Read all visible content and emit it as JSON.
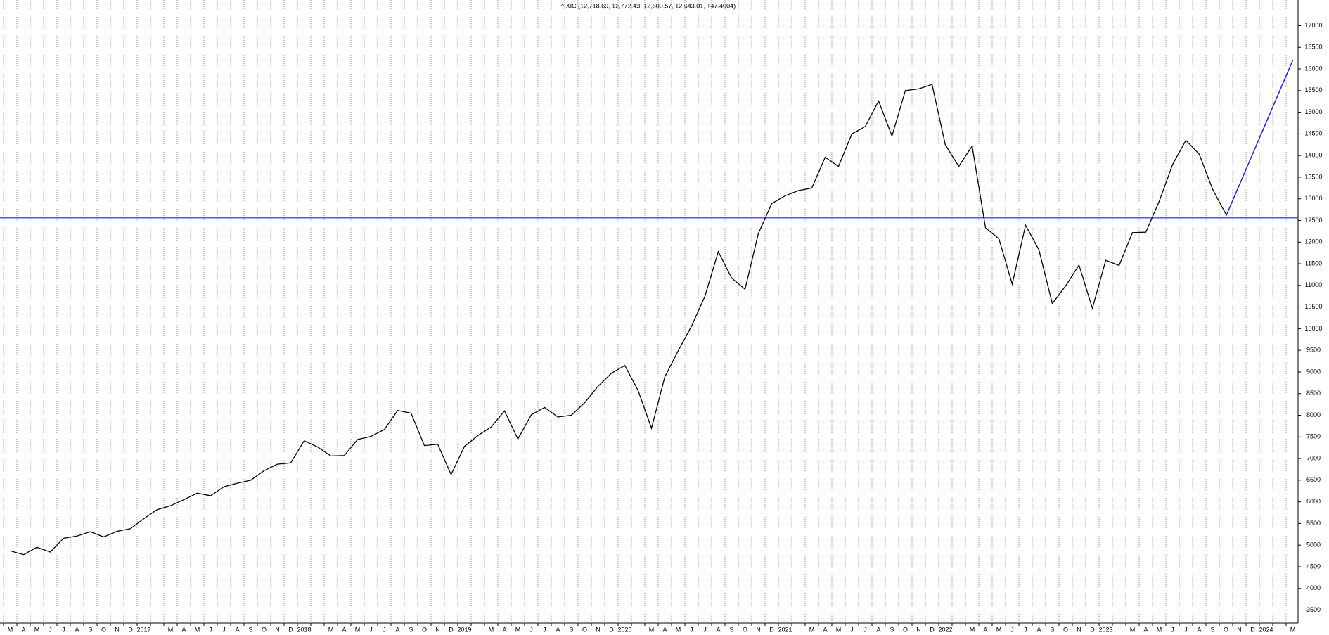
{
  "chart_data": {
    "type": "line",
    "title": "^IXIC (12,718.69, 12,772.43, 12,600.57, 12,643.01, +47.4004)",
    "categories": [
      "M",
      "A",
      "M",
      "J",
      "J",
      "A",
      "S",
      "O",
      "N",
      "D",
      "2017",
      null,
      "M",
      "A",
      "M",
      "J",
      "J",
      "A",
      "S",
      "O",
      "N",
      "D",
      "2018",
      null,
      "M",
      "A",
      "M",
      "J",
      "J",
      "A",
      "S",
      "O",
      "N",
      "D",
      "2019",
      null,
      "M",
      "A",
      "M",
      "J",
      "J",
      "A",
      "S",
      "O",
      "N",
      "D",
      "2020",
      null,
      "M",
      "A",
      "M",
      "J",
      "J",
      "A",
      "S",
      "O",
      "N",
      "D",
      "2021",
      null,
      "M",
      "A",
      "M",
      "J",
      "J",
      "A",
      "S",
      "O",
      "N",
      "D",
      "2022",
      null,
      "M",
      "A",
      "M",
      "J",
      "J",
      "A",
      "S",
      "O",
      "N",
      "D",
      "2023",
      null,
      "M",
      "A",
      "M",
      "J",
      "J",
      "A",
      "S",
      "O",
      "N",
      "D",
      "2024",
      null,
      "M"
    ],
    "series": [
      {
        "color": "#000000",
        "values": [
          4870,
          4780,
          4950,
          4840,
          5160,
          5210,
          5310,
          5190,
          5320,
          5380,
          5610,
          5820,
          5910,
          6050,
          6200,
          6140,
          6350,
          6430,
          6500,
          6720,
          6870,
          6900,
          7410,
          7270,
          7060,
          7070,
          7440,
          7510,
          7670,
          8110,
          8050,
          7300,
          7330,
          6630,
          7280,
          7530,
          7730,
          8100,
          7450,
          8010,
          8180,
          7960,
          8000,
          8290,
          8670,
          8970,
          9150,
          8570,
          7700,
          8890,
          9490,
          10060,
          10750,
          11780,
          11170,
          10910,
          12200,
          12890,
          13070,
          13190,
          13250,
          13960,
          13750,
          14500,
          14670,
          15260,
          14450,
          15500,
          15540,
          15640,
          14240,
          13750,
          14220,
          12330,
          12080,
          11030,
          12390,
          11820,
          10580,
          10990,
          11470,
          10470,
          11580,
          11460,
          12220,
          12230,
          12940,
          13790,
          14350,
          14030,
          13220,
          12640,
          null,
          null,
          null,
          null,
          null
        ]
      }
    ],
    "ylim": [
      3200,
      17300
    ],
    "yticks": [
      3500,
      4000,
      4500,
      5000,
      5500,
      6000,
      6500,
      7000,
      7500,
      8000,
      8500,
      9000,
      9500,
      10000,
      10500,
      11000,
      11500,
      12000,
      12500,
      13000,
      13500,
      14000,
      14500,
      15000,
      15500,
      16000,
      16500,
      17000
    ],
    "hlines": [
      {
        "value": 12560,
        "color": "#2020e0"
      }
    ],
    "trendlines": [
      {
        "start": [
          91,
          12600
        ],
        "end": [
          96,
          16200
        ],
        "color": "#2020e0"
      }
    ],
    "grid": true
  }
}
